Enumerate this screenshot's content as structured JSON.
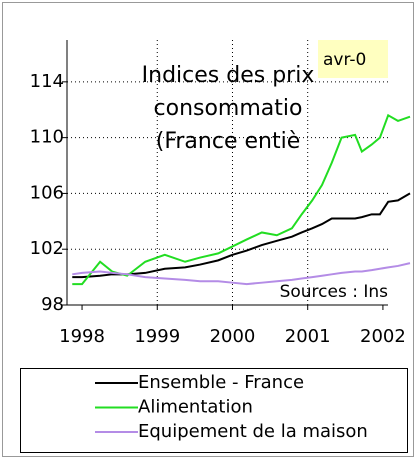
{
  "chart_data": {
    "type": "line",
    "title_lines": [
      "Indices des prix",
      "consommatio",
      "(France entiè"
    ],
    "date_label": "avr-0",
    "source": "Sources : Ins",
    "x": [
      1997.87,
      1998.0,
      1998.24,
      1998.4,
      1998.6,
      1998.84,
      1999.1,
      1999.37,
      1999.57,
      1999.81,
      2000.0,
      2000.19,
      2000.39,
      2000.59,
      2000.79,
      2000.92,
      2001.06,
      2001.19,
      2001.32,
      2001.45,
      2001.63,
      2001.72,
      2001.85,
      2001.96,
      2002.07,
      2002.2,
      2002.36
    ],
    "series": [
      {
        "name": "Ensemble - France",
        "color": "#000000",
        "values": [
          100.0,
          100.0,
          100.1,
          100.2,
          100.2,
          100.3,
          100.6,
          100.7,
          100.9,
          101.2,
          101.6,
          101.9,
          102.3,
          102.6,
          102.9,
          103.2,
          103.5,
          103.8,
          104.2,
          104.2,
          104.2,
          104.3,
          104.5,
          104.5,
          105.4,
          105.5,
          106.0
        ]
      },
      {
        "name": "Alimentation",
        "color": "#22dd22",
        "values": [
          99.5,
          99.5,
          101.1,
          100.4,
          100.1,
          101.1,
          101.6,
          101.1,
          101.4,
          101.7,
          102.2,
          102.7,
          103.2,
          103.0,
          103.5,
          104.5,
          105.5,
          106.6,
          108.2,
          110.0,
          110.2,
          109.0,
          109.5,
          110.0,
          111.6,
          111.2,
          111.5
        ]
      },
      {
        "name": "Equipement de la maison",
        "color": "#b48ce6",
        "values": [
          100.2,
          100.3,
          100.4,
          100.3,
          100.2,
          100.0,
          99.9,
          99.8,
          99.7,
          99.7,
          99.6,
          99.5,
          99.6,
          99.7,
          99.8,
          99.9,
          100.0,
          100.1,
          100.2,
          100.3,
          100.4,
          100.4,
          100.5,
          100.6,
          100.7,
          100.8,
          101.0
        ]
      }
    ],
    "xlim": [
      1997.8,
      2002.36
    ],
    "xticks": [
      1998,
      1999,
      2000,
      2001,
      2002
    ],
    "ylim": [
      98,
      117
    ],
    "yticks": [
      98,
      102,
      106,
      110,
      114
    ],
    "grid": true
  }
}
